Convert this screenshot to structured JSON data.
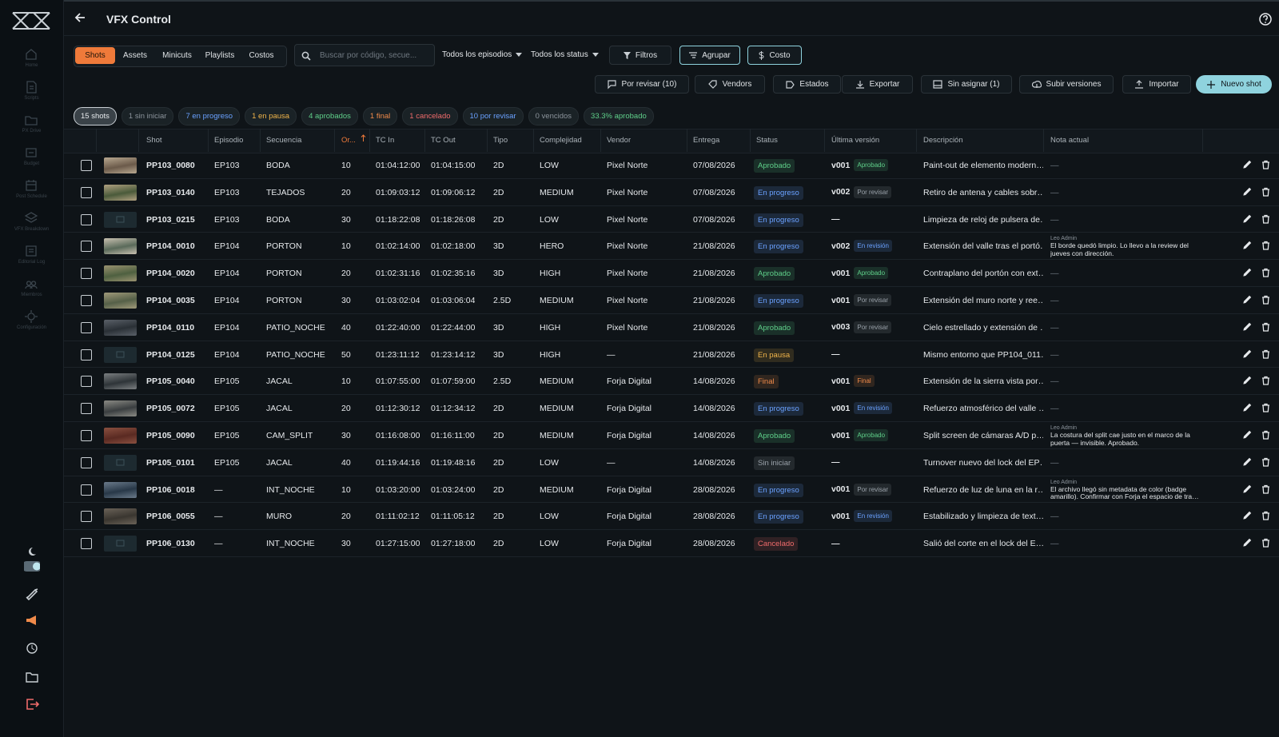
{
  "sidebar": {
    "nav": [
      "Home",
      "Scripts",
      "PX Drive",
      "Budget",
      "Post Schedule",
      "VFX Breakdown",
      "Editorial Log",
      "Miembros",
      "Configuración"
    ]
  },
  "header": {
    "title": "VFX Control"
  },
  "tabs": [
    "Shots",
    "Assets",
    "Minicuts",
    "Playlists",
    "Costos"
  ],
  "search": {
    "placeholder": "Buscar por código, secue..."
  },
  "filters": {
    "episodes": "Todos los episodios",
    "status": "Todos los status",
    "filter": "Filtros",
    "group": "Agrupar",
    "cost": "Costo"
  },
  "actions": [
    "Por revisar (10)",
    "Vendors",
    "Estados",
    "Exportar",
    "Sin asignar (1)",
    "Subir versiones",
    "Importar",
    "Nuevo shot"
  ],
  "chips": [
    {
      "label": "15 shots",
      "color": "#e6e9ec"
    },
    {
      "label": "1 sin iniciar",
      "color": "#8c949c"
    },
    {
      "label": "7 en progreso",
      "color": "#6aa1ff"
    },
    {
      "label": "1 en pausa",
      "color": "#f0b44a"
    },
    {
      "label": "4 aprobados",
      "color": "#5fd08a"
    },
    {
      "label": "1 final",
      "color": "#f08a4a"
    },
    {
      "label": "1 cancelado",
      "color": "#ef6b6b"
    },
    {
      "label": "10 por revisar",
      "color": "#6aa1ff"
    },
    {
      "label": "0 vencidos",
      "color": "#8c949c"
    },
    {
      "label": "33.3% aprobado",
      "color": "#5fd08a"
    }
  ],
  "table": {
    "columns": [
      "Shot",
      "Episodio",
      "Secuencia",
      "Or...",
      "TC In",
      "TC Out",
      "Tipo",
      "Complejidad",
      "Vendor",
      "Entrega",
      "Status",
      "Última versión",
      "Descripción",
      "Nota actual"
    ],
    "status_colors": {
      "Aprobado": "#5fd08a",
      "En progreso": "#6aa1ff",
      "En pausa": "#f0b44a",
      "Final": "#f08a4a",
      "Cancelado": "#ef6b6b",
      "Sin iniciar": "#9aa2aa",
      "Por revisar": "#9aa2aa",
      "En revisión": "#6aa1ff"
    },
    "rows": [
      {
        "has_thumbnail": true,
        "shot": "PP103_0080",
        "episode": "EP103",
        "sequence": "BODA",
        "order": "10",
        "tc_in": "01:04:12:00",
        "tc_out": "01:04:15:00",
        "type": "2D",
        "complexity": "LOW",
        "vendor": "Pixel Norte",
        "due": "07/08/2026",
        "status": "Aprobado",
        "version": "v001",
        "version_status": "Aprobado",
        "description": "Paint-out de elemento modern…",
        "note": "—"
      },
      {
        "has_thumbnail": true,
        "shot": "PP103_0140",
        "episode": "EP103",
        "sequence": "TEJADOS",
        "order": "20",
        "tc_in": "01:09:03:12",
        "tc_out": "01:09:06:12",
        "type": "2D",
        "complexity": "MEDIUM",
        "vendor": "Pixel Norte",
        "due": "07/08/2026",
        "status": "En progreso",
        "version": "v002",
        "version_status": "Por revisar",
        "description": "Retiro de antena y cables sobr…",
        "note": "—"
      },
      {
        "has_thumbnail": false,
        "shot": "PP103_0215",
        "episode": "EP103",
        "sequence": "BODA",
        "order": "30",
        "tc_in": "01:18:22:08",
        "tc_out": "01:18:26:08",
        "type": "2D",
        "complexity": "LOW",
        "vendor": "Pixel Norte",
        "due": "07/08/2026",
        "status": "En progreso",
        "version": "—",
        "description": "Limpieza de reloj de pulsera de…",
        "note": "—"
      },
      {
        "has_thumbnail": true,
        "shot": "PP104_0010",
        "episode": "EP104",
        "sequence": "PORTON",
        "order": "10",
        "tc_in": "01:02:14:00",
        "tc_out": "01:02:18:00",
        "type": "3D",
        "complexity": "HERO",
        "vendor": "Pixel Norte",
        "due": "21/08/2026",
        "status": "En progreso",
        "version": "v002",
        "version_status": "En revisión",
        "description": "Extensión del valle tras el portó…",
        "note_author": "Leo Admin",
        "note": "El borde quedó limpio. Lo llevo a la review del jueves con dirección."
      },
      {
        "has_thumbnail": true,
        "shot": "PP104_0020",
        "episode": "EP104",
        "sequence": "PORTON",
        "order": "20",
        "tc_in": "01:02:31:16",
        "tc_out": "01:02:35:16",
        "type": "3D",
        "complexity": "HIGH",
        "vendor": "Pixel Norte",
        "due": "21/08/2026",
        "status": "Aprobado",
        "version": "v001",
        "version_status": "Aprobado",
        "description": "Contraplano del portón con ext…",
        "note": "—"
      },
      {
        "has_thumbnail": true,
        "shot": "PP104_0035",
        "episode": "EP104",
        "sequence": "PORTON",
        "order": "30",
        "tc_in": "01:03:02:04",
        "tc_out": "01:03:06:04",
        "type": "2.5D",
        "complexity": "MEDIUM",
        "vendor": "Pixel Norte",
        "due": "21/08/2026",
        "status": "En progreso",
        "version": "v001",
        "version_status": "Por revisar",
        "description": "Extensión del muro norte y ree…",
        "note": "—"
      },
      {
        "has_thumbnail": true,
        "shot": "PP104_0110",
        "episode": "EP104",
        "sequence": "PATIO_NOCHE",
        "order": "40",
        "tc_in": "01:22:40:00",
        "tc_out": "01:22:44:00",
        "type": "3D",
        "complexity": "HIGH",
        "vendor": "Pixel Norte",
        "due": "21/08/2026",
        "status": "Aprobado",
        "version": "v003",
        "version_status": "Por revisar",
        "description": "Cielo estrellado y extensión de …",
        "note": "—"
      },
      {
        "has_thumbnail": false,
        "shot": "PP104_0125",
        "episode": "EP104",
        "sequence": "PATIO_NOCHE",
        "order": "50",
        "tc_in": "01:23:11:12",
        "tc_out": "01:23:14:12",
        "type": "3D",
        "complexity": "HIGH",
        "vendor": "—",
        "due": "21/08/2026",
        "status": "En pausa",
        "version": "—",
        "description": "Mismo entorno que PP104_011…",
        "note": "—"
      },
      {
        "has_thumbnail": true,
        "shot": "PP105_0040",
        "episode": "EP105",
        "sequence": "JACAL",
        "order": "10",
        "tc_in": "01:07:55:00",
        "tc_out": "01:07:59:00",
        "type": "2.5D",
        "complexity": "MEDIUM",
        "vendor": "Forja Digital",
        "due": "14/08/2026",
        "status": "Final",
        "version": "v001",
        "version_status": "Final",
        "description": "Extensión de la sierra vista por…",
        "note": "—"
      },
      {
        "has_thumbnail": true,
        "shot": "PP105_0072",
        "episode": "EP105",
        "sequence": "JACAL",
        "order": "20",
        "tc_in": "01:12:30:12",
        "tc_out": "01:12:34:12",
        "type": "2D",
        "complexity": "MEDIUM",
        "vendor": "Forja Digital",
        "due": "14/08/2026",
        "status": "En progreso",
        "version": "v001",
        "version_status": "En revisión",
        "description": "Refuerzo atmosférico del valle …",
        "note": "—"
      },
      {
        "has_thumbnail": true,
        "shot": "PP105_0090",
        "episode": "EP105",
        "sequence": "CAM_SPLIT",
        "order": "30",
        "tc_in": "01:16:08:00",
        "tc_out": "01:16:11:00",
        "type": "2D",
        "complexity": "MEDIUM",
        "vendor": "Forja Digital",
        "due": "14/08/2026",
        "status": "Aprobado",
        "version": "v001",
        "version_status": "Aprobado",
        "description": "Split screen de cámaras A/D p…",
        "note_author": "Leo Admin",
        "note": "La costura del split cae justo en el marco de la puerta — invisible. Aprobado."
      },
      {
        "has_thumbnail": false,
        "shot": "PP105_0101",
        "episode": "EP105",
        "sequence": "JACAL",
        "order": "40",
        "tc_in": "01:19:44:16",
        "tc_out": "01:19:48:16",
        "type": "2D",
        "complexity": "LOW",
        "vendor": "—",
        "due": "14/08/2026",
        "status": "Sin iniciar",
        "version": "—",
        "description": "Turnover nuevo del lock del EP…",
        "note": "—"
      },
      {
        "has_thumbnail": true,
        "shot": "PP106_0018",
        "episode": "—",
        "sequence": "INT_NOCHE",
        "order": "10",
        "tc_in": "01:03:20:00",
        "tc_out": "01:03:24:00",
        "type": "2D",
        "complexity": "MEDIUM",
        "vendor": "Forja Digital",
        "due": "28/08/2026",
        "status": "En progreso",
        "version": "v001",
        "version_status": "Por revisar",
        "description": "Refuerzo de luz de luna en la r…",
        "note_author": "Leo Admin",
        "note": "El archivo llegó sin metadata de color (badge amarillo). Confirmar con Forja el espacio de tra…"
      },
      {
        "has_thumbnail": true,
        "shot": "PP106_0055",
        "episode": "—",
        "sequence": "MURO",
        "order": "20",
        "tc_in": "01:11:02:12",
        "tc_out": "01:11:05:12",
        "type": "2D",
        "complexity": "LOW",
        "vendor": "Forja Digital",
        "due": "28/08/2026",
        "status": "En progreso",
        "version": "v001",
        "version_status": "En revisión",
        "description": "Estabilizado y limpieza de text…",
        "note": "—"
      },
      {
        "has_thumbnail": false,
        "shot": "PP106_0130",
        "episode": "—",
        "sequence": "INT_NOCHE",
        "order": "30",
        "tc_in": "01:27:15:00",
        "tc_out": "01:27:18:00",
        "type": "2D",
        "complexity": "LOW",
        "vendor": "Forja Digital",
        "due": "28/08/2026",
        "status": "Cancelado",
        "version": "—",
        "description": "Salió del corte en el lock del E…",
        "note": "—"
      }
    ]
  }
}
